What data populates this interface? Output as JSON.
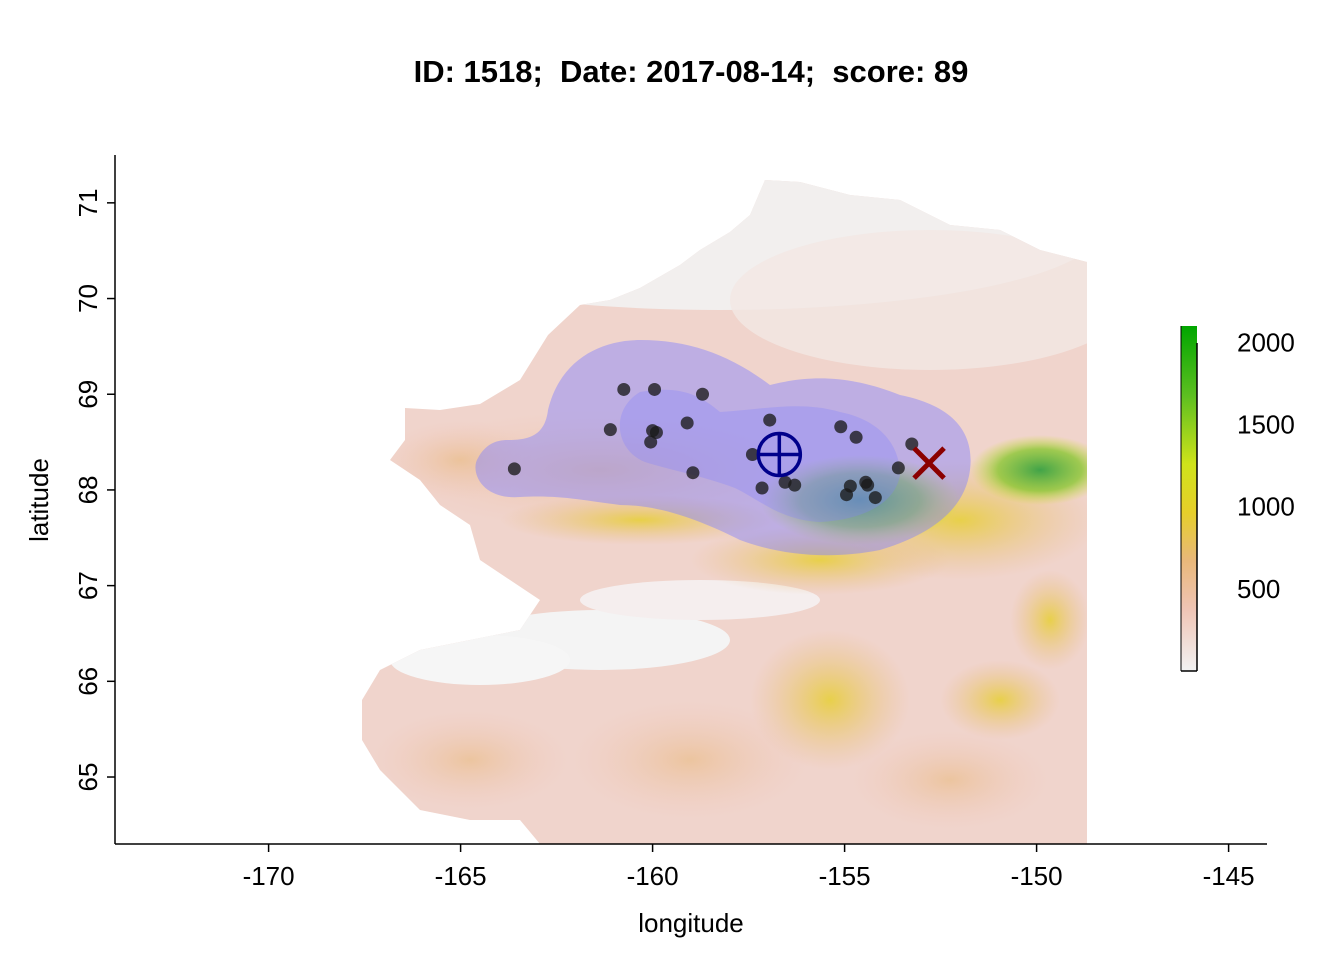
{
  "title": "ID: 1518;  Date: 2017-08-14;  score: 89",
  "chart_data": {
    "type": "scatter",
    "xlabel": "longitude",
    "ylabel": "latitude",
    "xlim": [
      -174,
      -144
    ],
    "ylim": [
      64.3,
      71.5
    ],
    "x_ticks": [
      -170,
      -165,
      -160,
      -155,
      -150,
      -145
    ],
    "y_ticks": [
      65,
      66,
      67,
      68,
      69,
      70,
      71
    ],
    "background": "elevation raster",
    "colorbar": {
      "ticks": [
        500,
        1000,
        1500,
        2000
      ],
      "range": [
        0,
        2100
      ],
      "colors": [
        "#f2f2f2",
        "#efc4b4",
        "#e9b87a",
        "#e6cf2a",
        "#cfe31a",
        "#5cbf20",
        "#00a600"
      ]
    },
    "points": [
      {
        "x": -163.6,
        "y": 68.22
      },
      {
        "x": -161.1,
        "y": 68.63
      },
      {
        "x": -160.75,
        "y": 69.05
      },
      {
        "x": -159.95,
        "y": 69.05
      },
      {
        "x": -160.0,
        "y": 68.62
      },
      {
        "x": -159.9,
        "y": 68.6
      },
      {
        "x": -160.05,
        "y": 68.5
      },
      {
        "x": -159.1,
        "y": 68.7
      },
      {
        "x": -158.7,
        "y": 69.0
      },
      {
        "x": -158.95,
        "y": 68.18
      },
      {
        "x": -157.4,
        "y": 68.37
      },
      {
        "x": -156.95,
        "y": 68.73
      },
      {
        "x": -157.15,
        "y": 68.02
      },
      {
        "x": -156.55,
        "y": 68.08
      },
      {
        "x": -156.3,
        "y": 68.05
      },
      {
        "x": -155.1,
        "y": 68.66
      },
      {
        "x": -154.7,
        "y": 68.55
      },
      {
        "x": -154.85,
        "y": 68.04
      },
      {
        "x": -154.95,
        "y": 67.95
      },
      {
        "x": -154.45,
        "y": 68.08
      },
      {
        "x": -154.4,
        "y": 68.05
      },
      {
        "x": -154.2,
        "y": 67.92
      },
      {
        "x": -153.6,
        "y": 68.23
      },
      {
        "x": -153.25,
        "y": 68.48
      }
    ],
    "markers": [
      {
        "kind": "circle-cross",
        "x": -156.7,
        "y": 68.37,
        "color": "#00008b"
      },
      {
        "kind": "x-cross",
        "x": -152.8,
        "y": 68.28,
        "color": "#8b0000"
      }
    ],
    "range_color": "#8080ff"
  }
}
